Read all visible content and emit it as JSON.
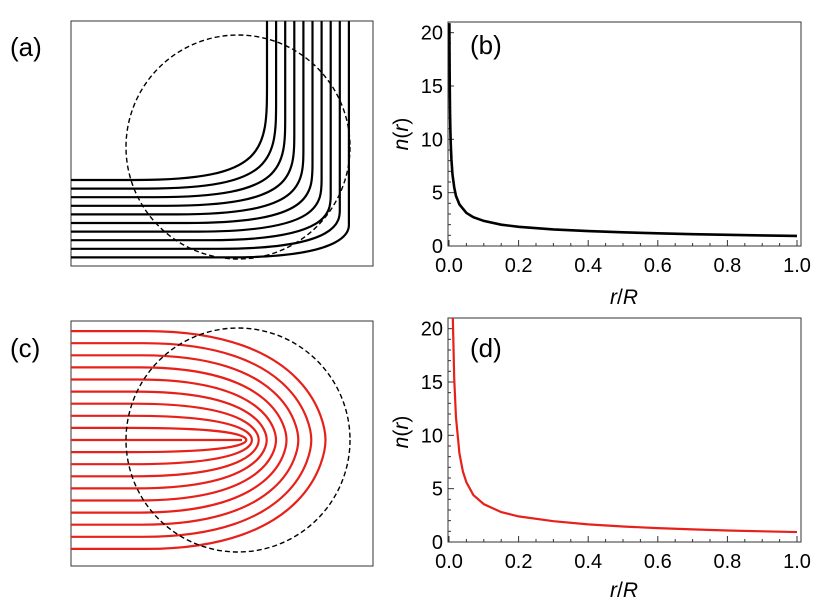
{
  "colors": {
    "black": "#000000",
    "red": "#e8201a"
  },
  "panels": {
    "a": {
      "label": "(a)",
      "rays": 10,
      "ray_color": "#000000",
      "description_type": "ray-diagram-bend-90"
    },
    "c": {
      "label": "(c)",
      "rays": 19,
      "ray_color": "#e8201a",
      "description_type": "ray-diagram-bend-180"
    }
  },
  "chart_data": [
    {
      "id": "b",
      "label": "(b)",
      "type": "line",
      "ylabel": "n(r)",
      "ylabel_parts": [
        "n",
        "(",
        "r",
        ")"
      ],
      "xlabel": "r/R",
      "xlabel_parts": [
        "r",
        "/",
        "R"
      ],
      "xlim": [
        0,
        1
      ],
      "ylim": [
        0,
        21
      ],
      "x_ticks": [
        "0.0",
        "0.2",
        "0.4",
        "0.6",
        "0.8",
        "1.0"
      ],
      "y_ticks": [
        "0",
        "5",
        "10",
        "15",
        "20"
      ],
      "color": "#000000",
      "series": [
        {
          "name": "n(r)",
          "x": [
            0.0011,
            0.0015,
            0.002,
            0.003,
            0.004,
            0.005,
            0.007,
            0.01,
            0.015,
            0.02,
            0.03,
            0.05,
            0.07,
            0.1,
            0.15,
            0.2,
            0.3,
            0.4,
            0.5,
            0.6,
            0.7,
            0.8,
            0.9,
            1.0
          ],
          "y": [
            20.9,
            18.0,
            15.5,
            12.5,
            10.8,
            9.6,
            8.1,
            6.7,
            5.5,
            4.7,
            3.9,
            3.1,
            2.7,
            2.35,
            2.0,
            1.8,
            1.55,
            1.4,
            1.28,
            1.19,
            1.11,
            1.05,
            0.99,
            0.94
          ]
        }
      ]
    },
    {
      "id": "d",
      "label": "(d)",
      "type": "line",
      "ylabel": "n(r)",
      "ylabel_parts": [
        "n",
        "(",
        "r",
        ")"
      ],
      "xlabel": "r/R",
      "xlabel_parts": [
        "r",
        "/",
        "R"
      ],
      "xlim": [
        0,
        1
      ],
      "ylim": [
        0,
        21
      ],
      "x_ticks": [
        "0.0",
        "0.2",
        "0.4",
        "0.6",
        "0.8",
        "1.0"
      ],
      "y_ticks": [
        "0",
        "5",
        "10",
        "15",
        "20"
      ],
      "color": "#e8201a",
      "series": [
        {
          "name": "n(r)",
          "x": [
            0.011,
            0.015,
            0.02,
            0.03,
            0.04,
            0.05,
            0.07,
            0.1,
            0.15,
            0.2,
            0.3,
            0.4,
            0.5,
            0.6,
            0.7,
            0.8,
            0.9,
            1.0
          ],
          "y": [
            21.0,
            15.3,
            11.7,
            8.3,
            6.6,
            5.6,
            4.4,
            3.55,
            2.8,
            2.4,
            1.95,
            1.65,
            1.45,
            1.3,
            1.18,
            1.08,
            1.0,
            0.93
          ]
        }
      ]
    }
  ]
}
